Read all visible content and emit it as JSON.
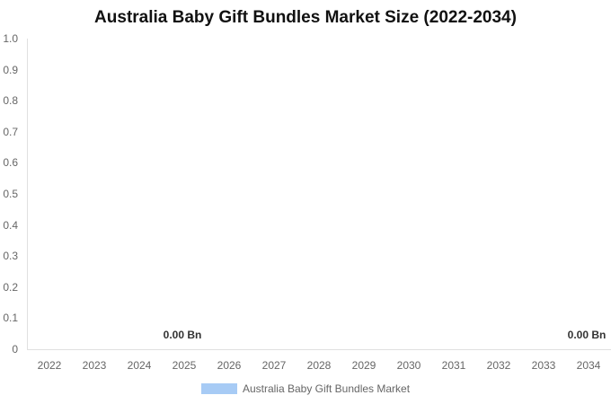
{
  "chart_data": {
    "type": "bar",
    "title": "Australia Baby Gift Bundles Market Size (2022-2034)",
    "xlabel": "",
    "ylabel": "",
    "categories": [
      "2022",
      "2023",
      "2024",
      "2025",
      "2026",
      "2027",
      "2028",
      "2029",
      "2030",
      "2031",
      "2032",
      "2033",
      "2034"
    ],
    "series": [
      {
        "name": "Australia Baby Gift Bundles Market",
        "color": "#a7cbf5",
        "values": [
          0,
          0,
          0,
          0,
          0,
          0,
          0,
          0,
          0,
          0,
          0,
          0,
          0
        ]
      }
    ],
    "ylim": [
      0,
      1.0
    ],
    "yticks": [
      "0",
      "0.1",
      "0.2",
      "0.3",
      "0.4",
      "0.5",
      "0.6",
      "0.7",
      "0.8",
      "0.9",
      "1.0"
    ],
    "annotations": [
      {
        "category": "2025",
        "text": "0.00 Bn"
      },
      {
        "category": "2034",
        "text": "0.00 Bn"
      }
    ],
    "grid": false,
    "legend_position": "bottom"
  },
  "title": "Australia Baby Gift Bundles Market Size (2022-2034)",
  "legend": {
    "label": "Australia Baby Gift Bundles Market"
  },
  "labels": {
    "a2025": "0.00 Bn",
    "a2034": "0.00 Bn"
  }
}
